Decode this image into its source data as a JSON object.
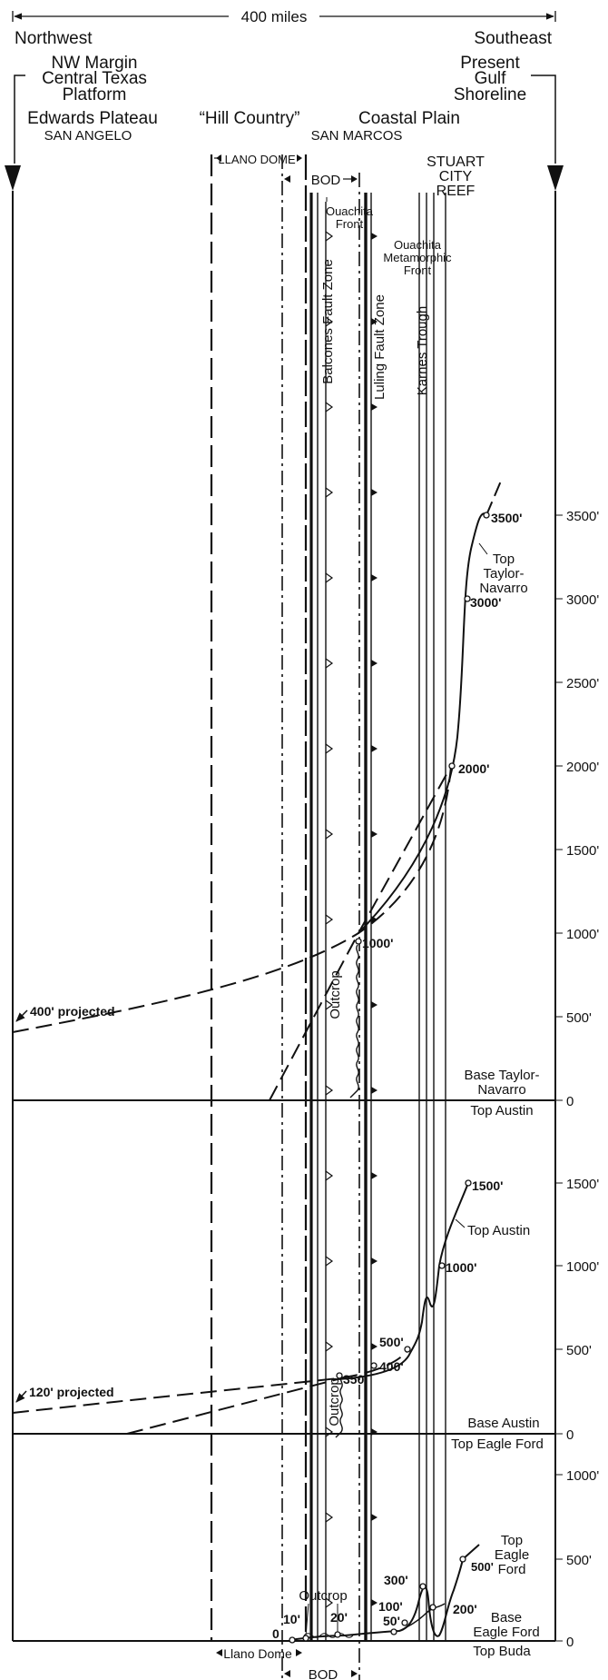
{
  "scale_label": "400 miles",
  "header": {
    "northwest": "Northwest",
    "southeast": "Southeast",
    "nw_margin": [
      "NW Margin",
      "Central Texas",
      "Platform"
    ],
    "present_gulf": [
      "Present",
      "Gulf",
      "Shoreline"
    ],
    "edwards_plateau": "Edwards Plateau",
    "san_angelo": "SAN ANGELO",
    "hill_country": "“Hill Country”",
    "coastal_plain": "Coastal Plain",
    "san_marcos": "SAN MARCOS",
    "llano_dome": "LLANO DOME",
    "bod": "BOD",
    "stuart_city_reef": [
      "STUART",
      "CITY",
      "REEF"
    ],
    "ouachita_front": [
      "Ouachita",
      "Front"
    ],
    "ouachita_metamorphic_front": [
      "Ouachita",
      "Metamorphic",
      "Front"
    ],
    "balcones_fault_zone": "Balcones Fault Zone",
    "luling_fault_zone": "Luling Fault Zone",
    "karnes_trough": "Karnes Trough"
  },
  "panels": {
    "taylor": {
      "ticks": [
        "3500'",
        "3000'",
        "2500'",
        "2000'",
        "1500'",
        "1000'",
        "500'",
        "0"
      ],
      "projected": "400' projected",
      "points": [
        "3500'",
        "3000'",
        "2000'",
        "1000'"
      ],
      "curve_label": [
        "Top",
        "Taylor-",
        "Navarro"
      ],
      "outcrop": "Outcrop",
      "base_label": [
        "Base Taylor-",
        "Navarro"
      ],
      "top_label": "Top Austin"
    },
    "austin": {
      "ticks": [
        "1500'",
        "1000'",
        "500'",
        "0"
      ],
      "projected": "120' projected",
      "points": [
        "1500'",
        "1000'",
        "500'",
        "400'",
        "350'"
      ],
      "curve_label": "Top Austin",
      "outcrop": "Outcrop",
      "base_label": "Base Austin",
      "top_label": "Top Eagle Ford"
    },
    "eagle_ford": {
      "ticks": [
        "1000'",
        "500'",
        "0"
      ],
      "points": [
        "0",
        "10'",
        "20'",
        "50'",
        "100'",
        "300'",
        "200'",
        "500'"
      ],
      "outcrop": "Outcrop",
      "top_label": [
        "Top",
        "Eagle",
        "Ford"
      ],
      "base_label": [
        "Base",
        "Eagle Ford"
      ],
      "bottom_label": "Top Buda"
    }
  },
  "footer": {
    "llano_dome": "Llano Dome",
    "bod": "BOD"
  }
}
